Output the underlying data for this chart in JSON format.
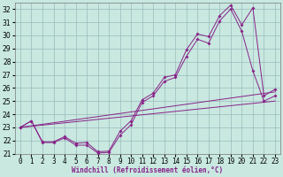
{
  "xlabel": "Windchill (Refroidissement éolien,°C)",
  "xlim": [
    -0.5,
    23.5
  ],
  "ylim": [
    21,
    32.5
  ],
  "xticks": [
    0,
    1,
    2,
    3,
    4,
    5,
    6,
    7,
    8,
    9,
    10,
    11,
    12,
    13,
    14,
    15,
    16,
    17,
    18,
    19,
    20,
    21,
    22,
    23
  ],
  "yticks": [
    21,
    22,
    23,
    24,
    25,
    26,
    27,
    28,
    29,
    30,
    31,
    32
  ],
  "bg_color": "#c8e8e0",
  "line_color": "#882288",
  "grid_color": "#99bbbb",
  "line1_y": [
    23.0,
    23.5,
    21.9,
    21.9,
    22.3,
    21.8,
    21.85,
    21.15,
    21.2,
    22.7,
    23.5,
    25.1,
    25.6,
    26.8,
    27.0,
    28.9,
    30.1,
    29.9,
    31.5,
    32.3,
    30.8,
    32.1,
    25.4,
    25.9
  ],
  "line3_y": [
    23.0,
    23.5,
    21.85,
    21.85,
    22.2,
    21.65,
    21.65,
    21.05,
    21.1,
    22.4,
    23.2,
    24.9,
    25.4,
    26.5,
    26.8,
    28.4,
    29.7,
    29.4,
    31.1,
    32.0,
    30.3,
    27.3,
    25.0,
    25.4
  ],
  "line_straight1": [
    23.0,
    25.7
  ],
  "line_straight2": [
    23.0,
    25.0
  ],
  "tick_fontsize": 5.5,
  "xlabel_fontsize": 5.5
}
